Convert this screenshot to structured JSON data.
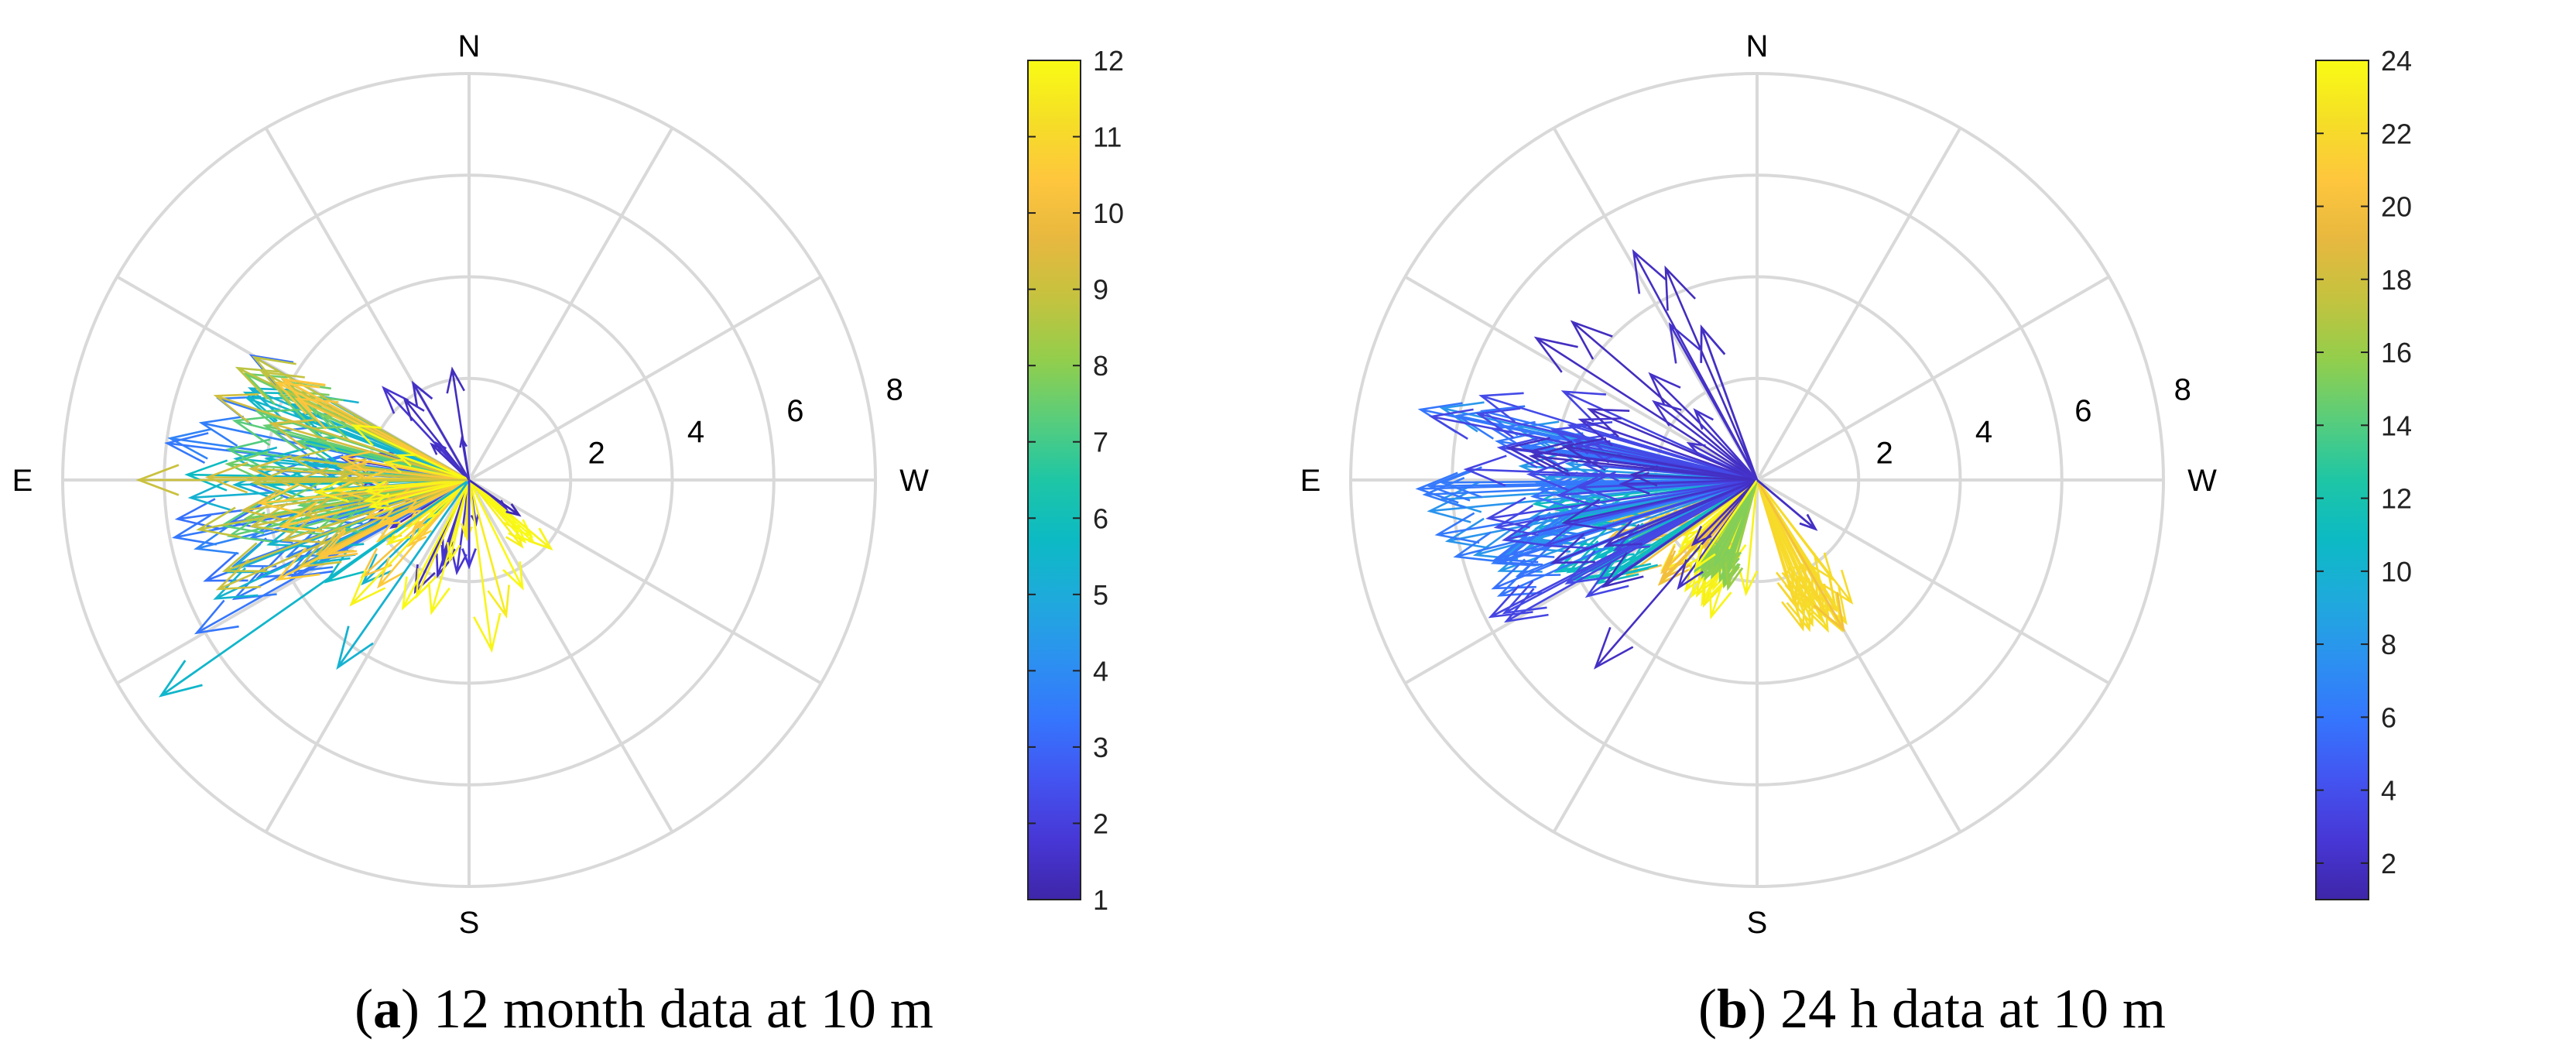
{
  "chart_data": [
    {
      "type": "polar-arrow (compass) plot",
      "panel_label": "a",
      "title": "12 month data at 10 m",
      "directions": [
        "N",
        "W",
        "S",
        "E"
      ],
      "r_ticks": [
        "2",
        "4",
        "6",
        "8"
      ],
      "rlim": [
        0,
        8
      ],
      "grid": true,
      "colorbar": {
        "min": 1,
        "max": 12,
        "ticks": [
          "1",
          "2",
          "3",
          "4",
          "5",
          "6",
          "7",
          "8",
          "9",
          "10",
          "11",
          "12"
        ],
        "colormap": "parula"
      },
      "notable_vectors": [
        {
          "color_value": 5.5,
          "angle_deg": 215,
          "magnitude": 7.4
        },
        {
          "color_value": 5.3,
          "angle_deg": 235,
          "magnitude": 4.5
        },
        {
          "color_value": 9,
          "angle_deg": 180,
          "magnitude": 6.5
        },
        {
          "color_value": 1.5,
          "angle_deg": 120,
          "magnitude": 2.2
        },
        {
          "color_value": 11.8,
          "angle_deg": 320,
          "magnitude": 2.1
        },
        {
          "color_value": 1.2,
          "angle_deg": 325,
          "magnitude": 1.2
        },
        {
          "color_value": 1.8,
          "angle_deg": 270,
          "magnitude": 1.7
        }
      ],
      "series_summary": "Several thousand vectors per color bin; directions mostly between 110° and 250° (pointing E, ENE, ESE), magnitudes mostly 2–6.",
      "color_groups": [
        {
          "c": 1.5,
          "ang": [
            95,
            330
          ],
          "mag": [
            0.8,
            2.6
          ]
        },
        {
          "c": 3.5,
          "ang": [
            150,
            215
          ],
          "mag": [
            2.5,
            6.2
          ]
        },
        {
          "c": 5.5,
          "ang": [
            150,
            225
          ],
          "mag": [
            2.6,
            6.0
          ]
        },
        {
          "c": 7.5,
          "ang": [
            145,
            205
          ],
          "mag": [
            2.6,
            5.2
          ]
        },
        {
          "c": 9.0,
          "ang": [
            150,
            215
          ],
          "mag": [
            2.4,
            5.6
          ]
        },
        {
          "c": 10.5,
          "ang": [
            150,
            230
          ],
          "mag": [
            1.4,
            4.4
          ]
        },
        {
          "c": 11.8,
          "ang": [
            145,
            320
          ],
          "mag": [
            1.0,
            3.4
          ]
        }
      ]
    },
    {
      "type": "polar-arrow (compass) plot",
      "panel_label": "b",
      "title": "24 h data at 10 m",
      "directions": [
        "N",
        "W",
        "S",
        "E"
      ],
      "r_ticks": [
        "2",
        "4",
        "6",
        "8"
      ],
      "rlim": [
        0,
        8
      ],
      "grid": true,
      "colorbar": {
        "min": 1,
        "max": 24,
        "ticks": [
          "2",
          "4",
          "6",
          "8",
          "10",
          "12",
          "14",
          "16",
          "18",
          "20",
          "22",
          "24"
        ],
        "colormap": "parula"
      },
      "notable_vectors": [
        {
          "color_value": 20,
          "angle_deg": 300,
          "magnitude": 3.4
        },
        {
          "color_value": 16,
          "angle_deg": 255,
          "magnitude": 2.2
        },
        {
          "color_value": 24,
          "angle_deg": 235,
          "magnitude": 2.1
        },
        {
          "color_value": 2,
          "angle_deg": 110,
          "magnitude": 3.2
        },
        {
          "color_value": 2,
          "angle_deg": 320,
          "magnitude": 1.5
        }
      ],
      "series_summary": "Dark blue (1–4) dominate a broad fan from 100° to 230°; light blue (6–12) mostly 165–205° at large radius; yellow (19–24) concentrated 200–260° and 295–310°.",
      "color_groups": [
        {
          "c": 2.0,
          "ang": [
            100,
            235
          ],
          "mag": [
            1.5,
            5.2
          ]
        },
        {
          "c": 3.5,
          "ang": [
            150,
            215
          ],
          "mag": [
            3.0,
            6.6
          ]
        },
        {
          "c": 6.0,
          "ang": [
            160,
            205
          ],
          "mag": [
            4.0,
            6.8
          ]
        },
        {
          "c": 8.0,
          "ang": [
            165,
            200
          ],
          "mag": [
            3.5,
            6.6
          ]
        },
        {
          "c": 11.0,
          "ang": [
            185,
            215
          ],
          "mag": [
            3.0,
            4.5
          ]
        },
        {
          "c": 15.5,
          "ang": [
            235,
            255
          ],
          "mag": [
            1.8,
            2.2
          ]
        },
        {
          "c": 20.0,
          "ang": [
            195,
            245
          ],
          "mag": [
            1.5,
            3.2
          ]
        },
        {
          "c": 22.0,
          "ang": [
            285,
            310
          ],
          "mag": [
            2.2,
            3.4
          ]
        },
        {
          "c": 23.5,
          "ang": [
            200,
            265
          ],
          "mag": [
            1.5,
            3.0
          ]
        }
      ]
    }
  ],
  "captions": {
    "a": {
      "label": "a",
      "text": "12 month data at 10 m"
    },
    "b": {
      "label": "b",
      "text": "24 h data at 10 m"
    }
  },
  "colors": {
    "grid": "#d9d9d9",
    "parula": [
      "#3e26a8",
      "#4737d6",
      "#4354f0",
      "#3575fd",
      "#2c91f0",
      "#1faadc",
      "#0cbac4",
      "#1ec6a5",
      "#58cd7c",
      "#92ce4c",
      "#c3c33f",
      "#e7b83f",
      "#fec63d",
      "#f5df26",
      "#f9fb14"
    ]
  }
}
